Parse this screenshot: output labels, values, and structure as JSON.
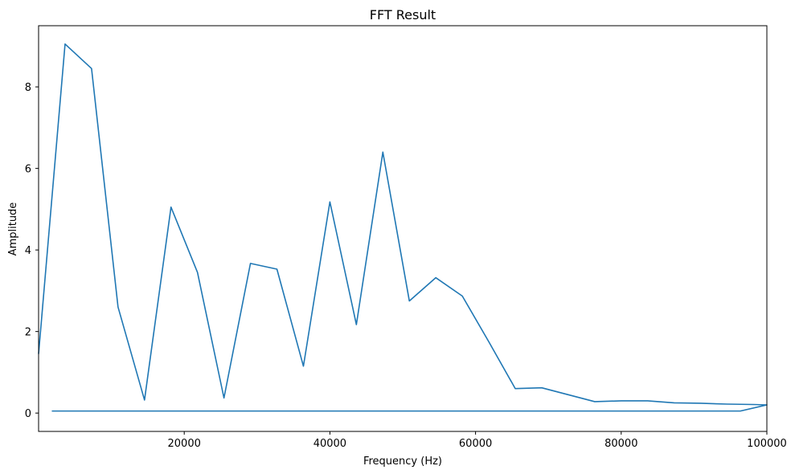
{
  "chart_data": {
    "type": "line",
    "title": "FFT Result",
    "xlabel": "Frequency (Hz)",
    "ylabel": "Amplitude",
    "xlim": [
      0,
      100000
    ],
    "ylim": [
      -0.45,
      9.5
    ],
    "grid": false,
    "x_ticks": [
      20000,
      40000,
      60000,
      80000,
      100000
    ],
    "y_ticks": [
      0,
      2,
      4,
      6,
      8
    ],
    "series_color": "#1f77b4",
    "series": [
      {
        "x": [
          0,
          3636,
          7273,
          10909,
          14545,
          18182,
          21818,
          25455,
          29091,
          32727,
          36364,
          40000,
          43636,
          47273,
          50909,
          54545,
          58182,
          61818,
          65455,
          69091,
          72727,
          76364,
          80000,
          83636,
          87273,
          90909,
          94545,
          98182,
          100000,
          96364,
          92727,
          89091,
          85455,
          81818,
          78182,
          74545,
          70909,
          67273,
          63636,
          60000,
          56364,
          52727,
          49091,
          45455,
          41818,
          38182,
          34545,
          30909,
          27273,
          23636,
          20000,
          16364,
          12727,
          9091,
          5455,
          1818
        ],
        "values": [
          1.45,
          9.05,
          8.45,
          2.6,
          0.32,
          5.05,
          3.45,
          0.37,
          3.67,
          3.53,
          1.15,
          5.18,
          2.17,
          6.4,
          2.75,
          3.32,
          2.87,
          1.75,
          0.6,
          0.62,
          0.45,
          0.28,
          0.3,
          0.3,
          0.25,
          0.24,
          0.22,
          0.21,
          0.2,
          0.05,
          0.05,
          0.05,
          0.05,
          0.05,
          0.05,
          0.05,
          0.05,
          0.05,
          0.05,
          0.05,
          0.05,
          0.05,
          0.05,
          0.05,
          0.05,
          0.05,
          0.05,
          0.05,
          0.05,
          0.05,
          0.05,
          0.05,
          0.05,
          0.05,
          0.05,
          0.05
        ]
      }
    ]
  }
}
